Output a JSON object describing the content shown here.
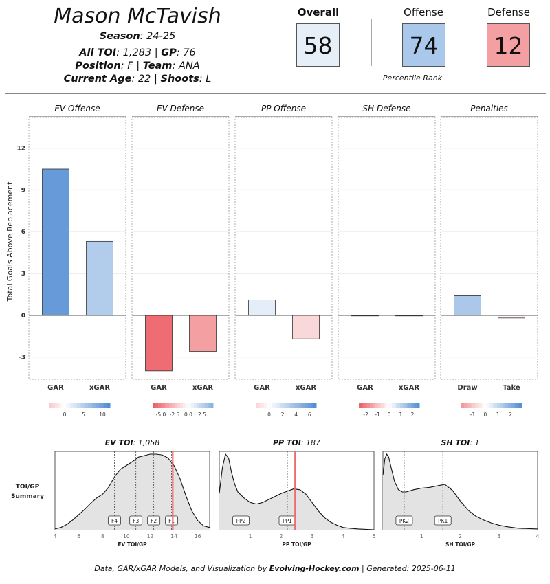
{
  "player": {
    "name": "Mason McTavish",
    "season_label": "Season",
    "season": "24-25",
    "toi_label": "All TOI",
    "toi": "1,283",
    "gp_label": "GP",
    "gp": "76",
    "position_label": "Position",
    "position": "F",
    "team_label": "Team",
    "team": "ANA",
    "age_label": "Current Age",
    "age": "22",
    "shoots_label": "Shoots",
    "shoots": "L"
  },
  "scores": {
    "overall_label": "Overall",
    "overall": "58",
    "offense_label": "Offense",
    "offense": "74",
    "defense_label": "Defense",
    "defense": "12",
    "percentile_label": "Percentile Rank",
    "colors": {
      "overall": "#e6eef8",
      "offense": "#a9c8ea",
      "defense": "#f4a0a2"
    }
  },
  "chart_data": [
    {
      "type": "bar",
      "ylabel": "Total Goals Above Replacement",
      "ylim": [
        -4.6,
        14.2
      ],
      "yticks": [
        -3,
        0,
        3,
        6,
        9,
        12
      ],
      "panels": [
        {
          "title": "EV Offense",
          "categories": [
            "GAR",
            "xGAR"
          ],
          "values": [
            10.5,
            5.3
          ],
          "legend": {
            "ticks": [
              "0",
              "5",
              "10"
            ],
            "tick_values": [
              0,
              5,
              10
            ],
            "range": [
              -4,
              12
            ]
          }
        },
        {
          "title": "EV Defense",
          "categories": [
            "GAR",
            "xGAR"
          ],
          "values": [
            -4.0,
            -2.6
          ],
          "legend": {
            "ticks": [
              "-5.0",
              "-2.5",
              "0.0",
              "2.5"
            ],
            "tick_values": [
              -5,
              -2.5,
              0,
              2.5
            ],
            "range": [
              -6.5,
              4.5
            ]
          }
        },
        {
          "title": "PP Offense",
          "categories": [
            "GAR",
            "xGAR"
          ],
          "values": [
            1.1,
            -1.7
          ],
          "legend": {
            "ticks": [
              "0",
              "2",
              "4",
              "6"
            ],
            "tick_values": [
              0,
              2,
              4,
              6
            ],
            "range": [
              -2,
              7
            ]
          }
        },
        {
          "title": "SH Defense",
          "categories": [
            "GAR",
            "xGAR"
          ],
          "values": [
            0.0,
            0.0
          ],
          "legend": {
            "ticks": [
              "-2",
              "-1",
              "0",
              "1",
              "2"
            ],
            "tick_values": [
              -2,
              -1,
              0,
              1,
              2
            ],
            "range": [
              -2.6,
              2.6
            ]
          }
        },
        {
          "title": "Penalties",
          "categories": [
            "Draw",
            "Take"
          ],
          "values": [
            1.4,
            -0.2
          ],
          "legend": {
            "ticks": [
              "-1",
              "0",
              "1",
              "2"
            ],
            "tick_values": [
              -1,
              0,
              1,
              2
            ],
            "range": [
              -1.9,
              2.9
            ]
          }
        }
      ]
    },
    {
      "type": "area",
      "row_label": [
        "TOI/GP",
        "Summary"
      ],
      "panels": [
        {
          "title_label": "EV TOI",
          "title_value": "1,058",
          "xlabel": "EV TOI/GP",
          "xlim": [
            4,
            17
          ],
          "xticks": [
            4,
            6,
            8,
            10,
            12,
            14,
            16
          ],
          "density_x": [
            4.0,
            4.5,
            5.0,
            5.5,
            6.0,
            6.5,
            7.0,
            7.5,
            8.0,
            8.5,
            9.0,
            9.5,
            10.0,
            10.5,
            11.0,
            11.5,
            12.0,
            12.5,
            13.0,
            13.5,
            14.0,
            14.5,
            15.0,
            15.5,
            16.0,
            16.5,
            17.0
          ],
          "density_y": [
            0.01,
            0.03,
            0.07,
            0.13,
            0.2,
            0.27,
            0.35,
            0.42,
            0.47,
            0.56,
            0.7,
            0.8,
            0.85,
            0.9,
            0.96,
            0.98,
            1.0,
            1.0,
            0.99,
            0.95,
            0.85,
            0.68,
            0.45,
            0.25,
            0.12,
            0.05,
            0.03
          ],
          "markers": [
            {
              "label": "F4",
              "x": 9.0
            },
            {
              "label": "F3",
              "x": 10.8
            },
            {
              "label": "F2",
              "x": 12.3
            },
            {
              "label": "F1",
              "x": 13.8
            }
          ],
          "player_value": 13.9
        },
        {
          "title_label": "PP TOI",
          "title_value": "187",
          "xlabel": "PP TOI/GP",
          "xlim": [
            0,
            5
          ],
          "xticks": [
            1,
            2,
            3,
            4,
            5
          ],
          "density_x": [
            0.0,
            0.1,
            0.2,
            0.3,
            0.4,
            0.5,
            0.6,
            0.8,
            1.0,
            1.2,
            1.4,
            1.6,
            1.8,
            2.0,
            2.2,
            2.4,
            2.6,
            2.8,
            3.0,
            3.2,
            3.4,
            3.6,
            3.8,
            4.0,
            4.2,
            4.5,
            5.0
          ],
          "density_y": [
            0.48,
            0.82,
            1.0,
            0.95,
            0.75,
            0.6,
            0.5,
            0.42,
            0.36,
            0.34,
            0.36,
            0.4,
            0.44,
            0.48,
            0.51,
            0.54,
            0.53,
            0.47,
            0.36,
            0.25,
            0.16,
            0.1,
            0.06,
            0.03,
            0.02,
            0.01,
            0.0
          ],
          "markers": [
            {
              "label": "PP2",
              "x": 0.7
            },
            {
              "label": "PP1",
              "x": 2.2
            }
          ],
          "player_value": 2.45
        },
        {
          "title_label": "SH TOI",
          "title_value": "1",
          "xlabel": "SH TOI/GP",
          "xlim": [
            0,
            4
          ],
          "xticks": [
            1,
            2,
            3,
            4
          ],
          "density_x": [
            0.0,
            0.05,
            0.1,
            0.15,
            0.2,
            0.3,
            0.4,
            0.5,
            0.6,
            0.8,
            1.0,
            1.2,
            1.4,
            1.6,
            1.8,
            2.0,
            2.2,
            2.4,
            2.6,
            2.8,
            3.0,
            3.2,
            3.5,
            4.0
          ],
          "density_y": [
            0.72,
            0.94,
            1.0,
            0.96,
            0.85,
            0.64,
            0.53,
            0.5,
            0.5,
            0.53,
            0.55,
            0.56,
            0.58,
            0.6,
            0.52,
            0.38,
            0.26,
            0.18,
            0.13,
            0.09,
            0.06,
            0.04,
            0.02,
            0.01
          ],
          "markers": [
            {
              "label": "PK2",
              "x": 0.55
            },
            {
              "label": "PK1",
              "x": 1.55
            }
          ],
          "player_value": null
        }
      ]
    }
  ],
  "footer": {
    "prefix": "Data, GAR/xGAR Models, and Visualization by",
    "brand": "Evolving-Hockey.com",
    "suffix": "| Generated: 2025-06-11"
  }
}
